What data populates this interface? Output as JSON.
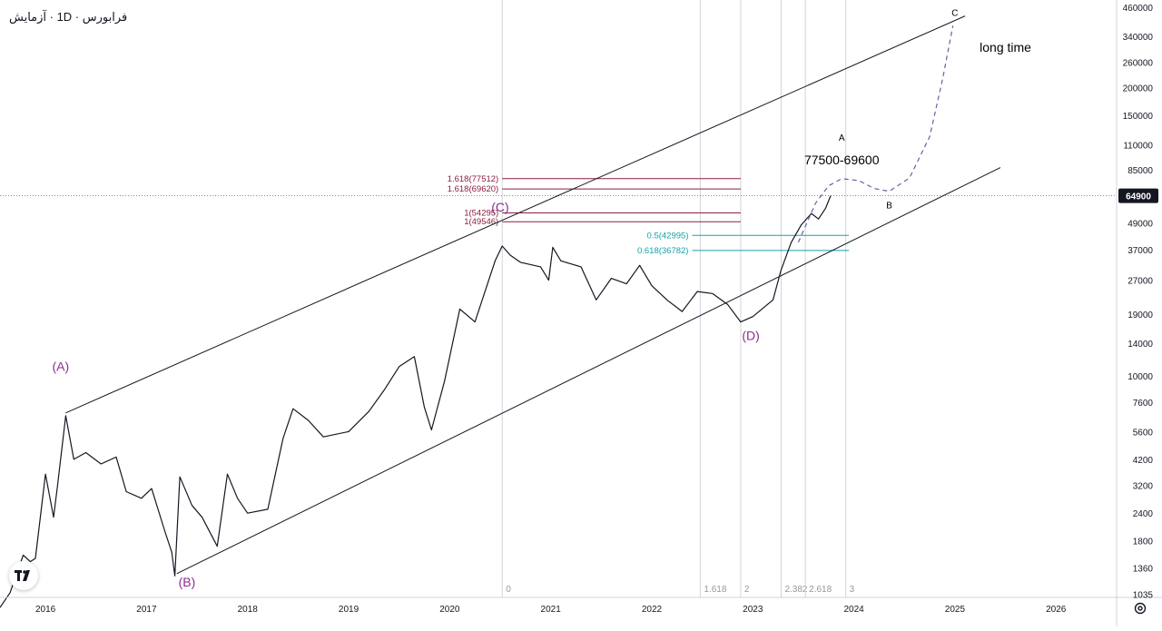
{
  "header": {
    "symbol_label": "فرابورس · 1D · آزمایش"
  },
  "price_tag": {
    "value": "64900"
  },
  "branding": {
    "logo": "tradingview-logo-icon",
    "settings_icon": "gear-icon"
  },
  "chart_data": {
    "type": "line",
    "title": "فرابورس · 1D · آزمایش",
    "scale": "log",
    "ylim": [
      1000,
      460000
    ],
    "y_ticks": [
      460000,
      340000,
      260000,
      200000,
      150000,
      110000,
      85000,
      65000,
      49000,
      37000,
      27000,
      19000,
      14000,
      10000,
      7600,
      5600,
      4200,
      3200,
      2400,
      1800,
      1360,
      1035
    ],
    "y_tick_labels": [
      "460000",
      "340000",
      "260000",
      "200000",
      "150000",
      "110000",
      "85000",
      "65000",
      "49000",
      "37000",
      "27000",
      "19000",
      "14000",
      "10000",
      "7600",
      "5600",
      "4200",
      "3200",
      "2400",
      "1800",
      "1360",
      "1035"
    ],
    "xlim": [
      2015.55,
      2026.6
    ],
    "x_ticks": [
      2016,
      2017,
      2018,
      2019,
      2020,
      2021,
      2022,
      2023,
      2024,
      2025,
      2026
    ],
    "x_tick_labels": [
      "2016",
      "2017",
      "2018",
      "2019",
      "2020",
      "2021",
      "2022",
      "2023",
      "2024",
      "2025",
      "2026"
    ],
    "grid": false,
    "last_price": 64900,
    "series": [
      {
        "type": "price",
        "points": [
          [
            2015.55,
            900
          ],
          [
            2015.65,
            1050
          ],
          [
            2015.72,
            1300
          ],
          [
            2015.78,
            1550
          ],
          [
            2015.85,
            1450
          ],
          [
            2015.9,
            1500
          ],
          [
            2016.0,
            3600
          ],
          [
            2016.08,
            2300
          ],
          [
            2016.12,
            3200
          ],
          [
            2016.2,
            6600
          ],
          [
            2016.28,
            4200
          ],
          [
            2016.4,
            4500
          ],
          [
            2016.55,
            4000
          ],
          [
            2016.7,
            4300
          ],
          [
            2016.8,
            3000
          ],
          [
            2016.95,
            2800
          ],
          [
            2017.05,
            3100
          ],
          [
            2017.18,
            2000
          ],
          [
            2017.25,
            1600
          ],
          [
            2017.28,
            1250
          ],
          [
            2017.33,
            3500
          ],
          [
            2017.45,
            2600
          ],
          [
            2017.55,
            2300
          ],
          [
            2017.7,
            1700
          ],
          [
            2017.8,
            3600
          ],
          [
            2017.9,
            2800
          ],
          [
            2018.0,
            2400
          ],
          [
            2018.2,
            2500
          ],
          [
            2018.35,
            5200
          ],
          [
            2018.45,
            7100
          ],
          [
            2018.6,
            6300
          ],
          [
            2018.75,
            5300
          ],
          [
            2019.0,
            5600
          ],
          [
            2019.2,
            6900
          ],
          [
            2019.35,
            8600
          ],
          [
            2019.5,
            11000
          ],
          [
            2019.65,
            12200
          ],
          [
            2019.75,
            7200
          ],
          [
            2019.82,
            5700
          ],
          [
            2019.95,
            9500
          ],
          [
            2020.1,
            20000
          ],
          [
            2020.25,
            17500
          ],
          [
            2020.45,
            33000
          ],
          [
            2020.52,
            38500
          ],
          [
            2020.6,
            35000
          ],
          [
            2020.7,
            32500
          ],
          [
            2020.9,
            31000
          ],
          [
            2020.98,
            27000
          ],
          [
            2021.02,
            38000
          ],
          [
            2021.1,
            33000
          ],
          [
            2021.3,
            31000
          ],
          [
            2021.45,
            22000
          ],
          [
            2021.6,
            27500
          ],
          [
            2021.75,
            26000
          ],
          [
            2021.88,
            31500
          ],
          [
            2022.0,
            25500
          ],
          [
            2022.15,
            22000
          ],
          [
            2022.3,
            19500
          ],
          [
            2022.45,
            24000
          ],
          [
            2022.6,
            23500
          ],
          [
            2022.75,
            21000
          ],
          [
            2022.88,
            17500
          ],
          [
            2023.0,
            18500
          ],
          [
            2023.2,
            22000
          ],
          [
            2023.28,
            30000
          ],
          [
            2023.38,
            40000
          ],
          [
            2023.48,
            48000
          ],
          [
            2023.58,
            54000
          ],
          [
            2023.65,
            51000
          ],
          [
            2023.72,
            57000
          ],
          [
            2023.77,
            64900
          ]
        ]
      },
      {
        "type": "projection",
        "style": "dashed",
        "points": [
          [
            2023.45,
            40000
          ],
          [
            2023.62,
            60000
          ],
          [
            2023.75,
            72000
          ],
          [
            2023.88,
            77500
          ],
          [
            2024.05,
            76000
          ],
          [
            2024.2,
            70000
          ],
          [
            2024.35,
            68000
          ],
          [
            2024.55,
            78000
          ],
          [
            2024.75,
            120000
          ],
          [
            2024.88,
            220000
          ],
          [
            2024.98,
            380000
          ]
        ]
      }
    ],
    "trendlines": [
      {
        "name": "channel-top",
        "from": [
          2016.2,
          6800
        ],
        "to": [
          2025.1,
          420000
        ]
      },
      {
        "name": "channel-bottom",
        "from": [
          2017.3,
          1280
        ],
        "to": [
          2025.45,
          87000
        ]
      }
    ],
    "fib_levels": [
      {
        "label": "1.618(77512)",
        "value": 77512,
        "color": "#8b1e3f"
      },
      {
        "label": "1.618(69620)",
        "value": 69620,
        "color": "#8b1e3f"
      },
      {
        "label": "1(54295)",
        "value": 54295,
        "color": "#8b1e3f"
      },
      {
        "label": "1(49546)",
        "value": 49546,
        "color": "#8b1e3f"
      },
      {
        "label": "0.5(42995)",
        "value": 42995,
        "color": "#17a2a2"
      },
      {
        "label": "0.618(36782)",
        "value": 36782,
        "color": "#17a2a2"
      }
    ],
    "time_fib": [
      {
        "label": "0",
        "x": 2020.52
      },
      {
        "label": "1.618",
        "x": 2022.48
      },
      {
        "label": "2",
        "x": 2022.88
      },
      {
        "label": "2.382",
        "x": 2023.28
      },
      {
        "label": "2.618",
        "x": 2023.52
      },
      {
        "label": "3",
        "x": 2023.92
      }
    ],
    "annotations": [
      {
        "text": "(A)",
        "x": 2016.15,
        "y": 10500,
        "color": "#8b2c8b"
      },
      {
        "text": "(B)",
        "x": 2017.4,
        "y": 1120,
        "color": "#8b2c8b"
      },
      {
        "text": "(C)",
        "x": 2020.5,
        "y": 55000,
        "color": "#8b2c8b"
      },
      {
        "text": "(D)",
        "x": 2022.98,
        "y": 14500,
        "color": "#8b2c8b"
      },
      {
        "text": "A",
        "x": 2023.88,
        "y": 115000,
        "color": "#000000"
      },
      {
        "text": "77500-69600",
        "x": 2023.88,
        "y": 90000,
        "color": "#000000"
      },
      {
        "text": "B",
        "x": 2024.35,
        "y": 57000,
        "color": "#000000"
      },
      {
        "text": "C",
        "x": 2025.0,
        "y": 420000,
        "color": "#000000"
      },
      {
        "text": "long time",
        "x": 2025.5,
        "y": 290000,
        "color": "#000000"
      }
    ]
  }
}
